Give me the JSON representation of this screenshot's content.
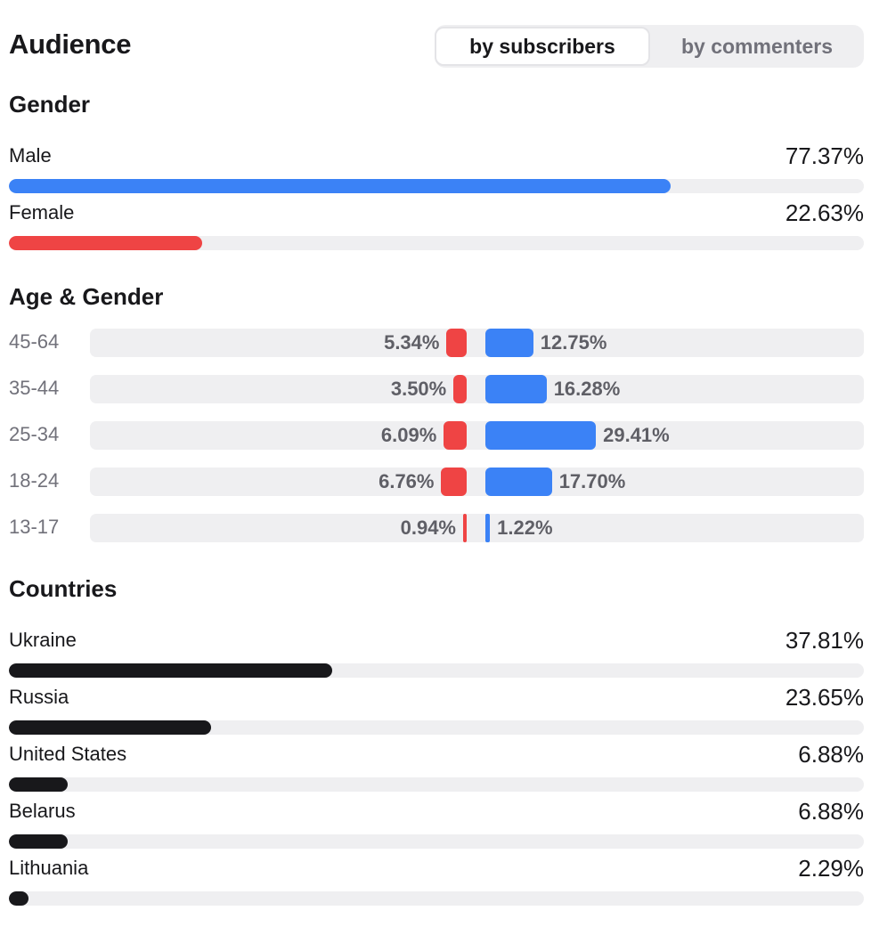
{
  "header": {
    "title": "Audience",
    "toggle": {
      "active": "by subscribers",
      "inactive": "by commenters"
    }
  },
  "colors": {
    "male": "#3b82f6",
    "female": "#ef4444",
    "country": "#18181b",
    "track": "#efeff1"
  },
  "gender": {
    "title": "Gender",
    "items": [
      {
        "label": "Male",
        "value": "77.37%",
        "pct": 77.37
      },
      {
        "label": "Female",
        "value": "22.63%",
        "pct": 22.63
      }
    ]
  },
  "age_gender": {
    "title": "Age & Gender",
    "rows": [
      {
        "age": "45-64",
        "female": "5.34%",
        "female_pct": 5.34,
        "male": "12.75%",
        "male_pct": 12.75
      },
      {
        "age": "35-44",
        "female": "3.50%",
        "female_pct": 3.5,
        "male": "16.28%",
        "male_pct": 16.28
      },
      {
        "age": "25-34",
        "female": "6.09%",
        "female_pct": 6.09,
        "male": "29.41%",
        "male_pct": 29.41
      },
      {
        "age": "18-24",
        "female": "6.76%",
        "female_pct": 6.76,
        "male": "17.70%",
        "male_pct": 17.7
      },
      {
        "age": "13-17",
        "female": "0.94%",
        "female_pct": 0.94,
        "male": "1.22%",
        "male_pct": 1.22
      }
    ]
  },
  "countries": {
    "title": "Countries",
    "items": [
      {
        "label": "Ukraine",
        "value": "37.81%",
        "pct": 37.81
      },
      {
        "label": "Russia",
        "value": "23.65%",
        "pct": 23.65
      },
      {
        "label": "United States",
        "value": "6.88%",
        "pct": 6.88
      },
      {
        "label": "Belarus",
        "value": "6.88%",
        "pct": 6.88
      },
      {
        "label": "Lithuania",
        "value": "2.29%",
        "pct": 2.29
      }
    ]
  }
}
